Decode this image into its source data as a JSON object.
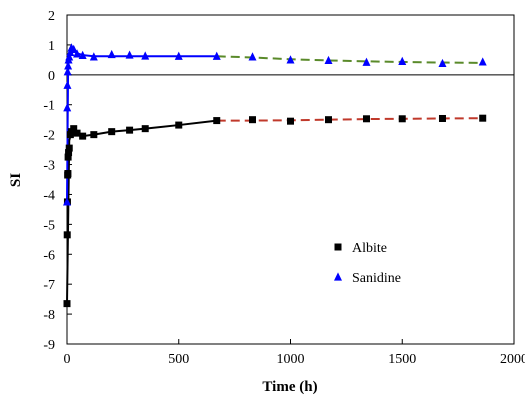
{
  "chart_data": {
    "type": "line",
    "title": "",
    "xlabel": "Time (h)",
    "ylabel": "SI",
    "xlim": [
      0,
      2000
    ],
    "ylim": [
      -9,
      2
    ],
    "xticks": [
      0,
      500,
      1000,
      1500,
      2000
    ],
    "yticks": [
      2,
      1,
      0,
      -1,
      -2,
      -3,
      -4,
      -5,
      -6,
      -7,
      -8,
      -9
    ],
    "xtick_labels": [
      "0",
      "500",
      "1000",
      "1500",
      "2000"
    ],
    "ytick_labels": [
      "2",
      "1",
      "0",
      "-1",
      "-2",
      "-3",
      "-4",
      "-5",
      "-6",
      "-7",
      "-8",
      "-9"
    ],
    "grid": false,
    "legend_position": "lower-right",
    "series": [
      {
        "name": "Albite",
        "marker": "square",
        "marker_color": "#000000",
        "x": [
          0,
          1,
          2,
          3,
          4,
          5,
          7,
          10,
          15,
          20,
          30,
          45,
          70,
          120,
          200,
          280,
          350,
          500,
          670,
          830,
          1000,
          1170,
          1340,
          1500,
          1680,
          1860
        ],
        "y": [
          -7.65,
          -5.35,
          -4.25,
          -3.35,
          -3.3,
          -2.75,
          -2.6,
          -2.45,
          -2.0,
          -1.9,
          -1.8,
          -1.95,
          -2.05,
          -2.0,
          -1.9,
          -1.85,
          -1.8,
          -1.68,
          -1.53,
          -1.5,
          -1.55,
          -1.5,
          -1.47,
          -1.47,
          -1.46,
          -1.45
        ]
      },
      {
        "name": "Sanidine",
        "marker": "triangle",
        "marker_color": "#0000ff",
        "x": [
          0,
          1,
          2,
          3,
          5,
          7,
          10,
          15,
          20,
          30,
          45,
          70,
          120,
          200,
          280,
          350,
          500,
          670,
          830,
          1000,
          1170,
          1340,
          1500,
          1680,
          1860
        ],
        "y": [
          -4.25,
          -1.1,
          -0.35,
          0.1,
          0.3,
          0.5,
          0.6,
          0.75,
          0.9,
          0.85,
          0.7,
          0.65,
          0.6,
          0.68,
          0.66,
          0.63,
          0.62,
          0.62,
          0.6,
          0.5,
          0.48,
          0.42,
          0.45,
          0.38,
          0.43
        ]
      }
    ],
    "fit_lines": [
      {
        "color": "#000000",
        "dash": false,
        "x": [
          0,
          10,
          20,
          30,
          45,
          70,
          120,
          200,
          280,
          350,
          500,
          670
        ],
        "y": [
          -7.65,
          -2.2,
          -1.9,
          -1.85,
          -1.95,
          -2.05,
          -2.0,
          -1.9,
          -1.85,
          -1.8,
          -1.68,
          -1.53
        ]
      },
      {
        "color": "#c0392b",
        "dash": true,
        "x": [
          670,
          830,
          1000,
          1170,
          1340,
          1500,
          1680,
          1860
        ],
        "y": [
          -1.53,
          -1.53,
          -1.52,
          -1.5,
          -1.48,
          -1.47,
          -1.46,
          -1.45
        ]
      },
      {
        "color": "#0000ff",
        "dash": false,
        "x": [
          0,
          5,
          10,
          20,
          30,
          45,
          70,
          120,
          200,
          350,
          500,
          670
        ],
        "y": [
          -4.25,
          0.3,
          0.7,
          0.9,
          0.85,
          0.72,
          0.66,
          0.62,
          0.62,
          0.62,
          0.62,
          0.62
        ]
      },
      {
        "color": "#5a8a2a",
        "dash": true,
        "x": [
          670,
          830,
          1000,
          1170,
          1340,
          1500,
          1680,
          1860
        ],
        "y": [
          0.62,
          0.58,
          0.52,
          0.48,
          0.45,
          0.43,
          0.41,
          0.4
        ]
      }
    ]
  }
}
